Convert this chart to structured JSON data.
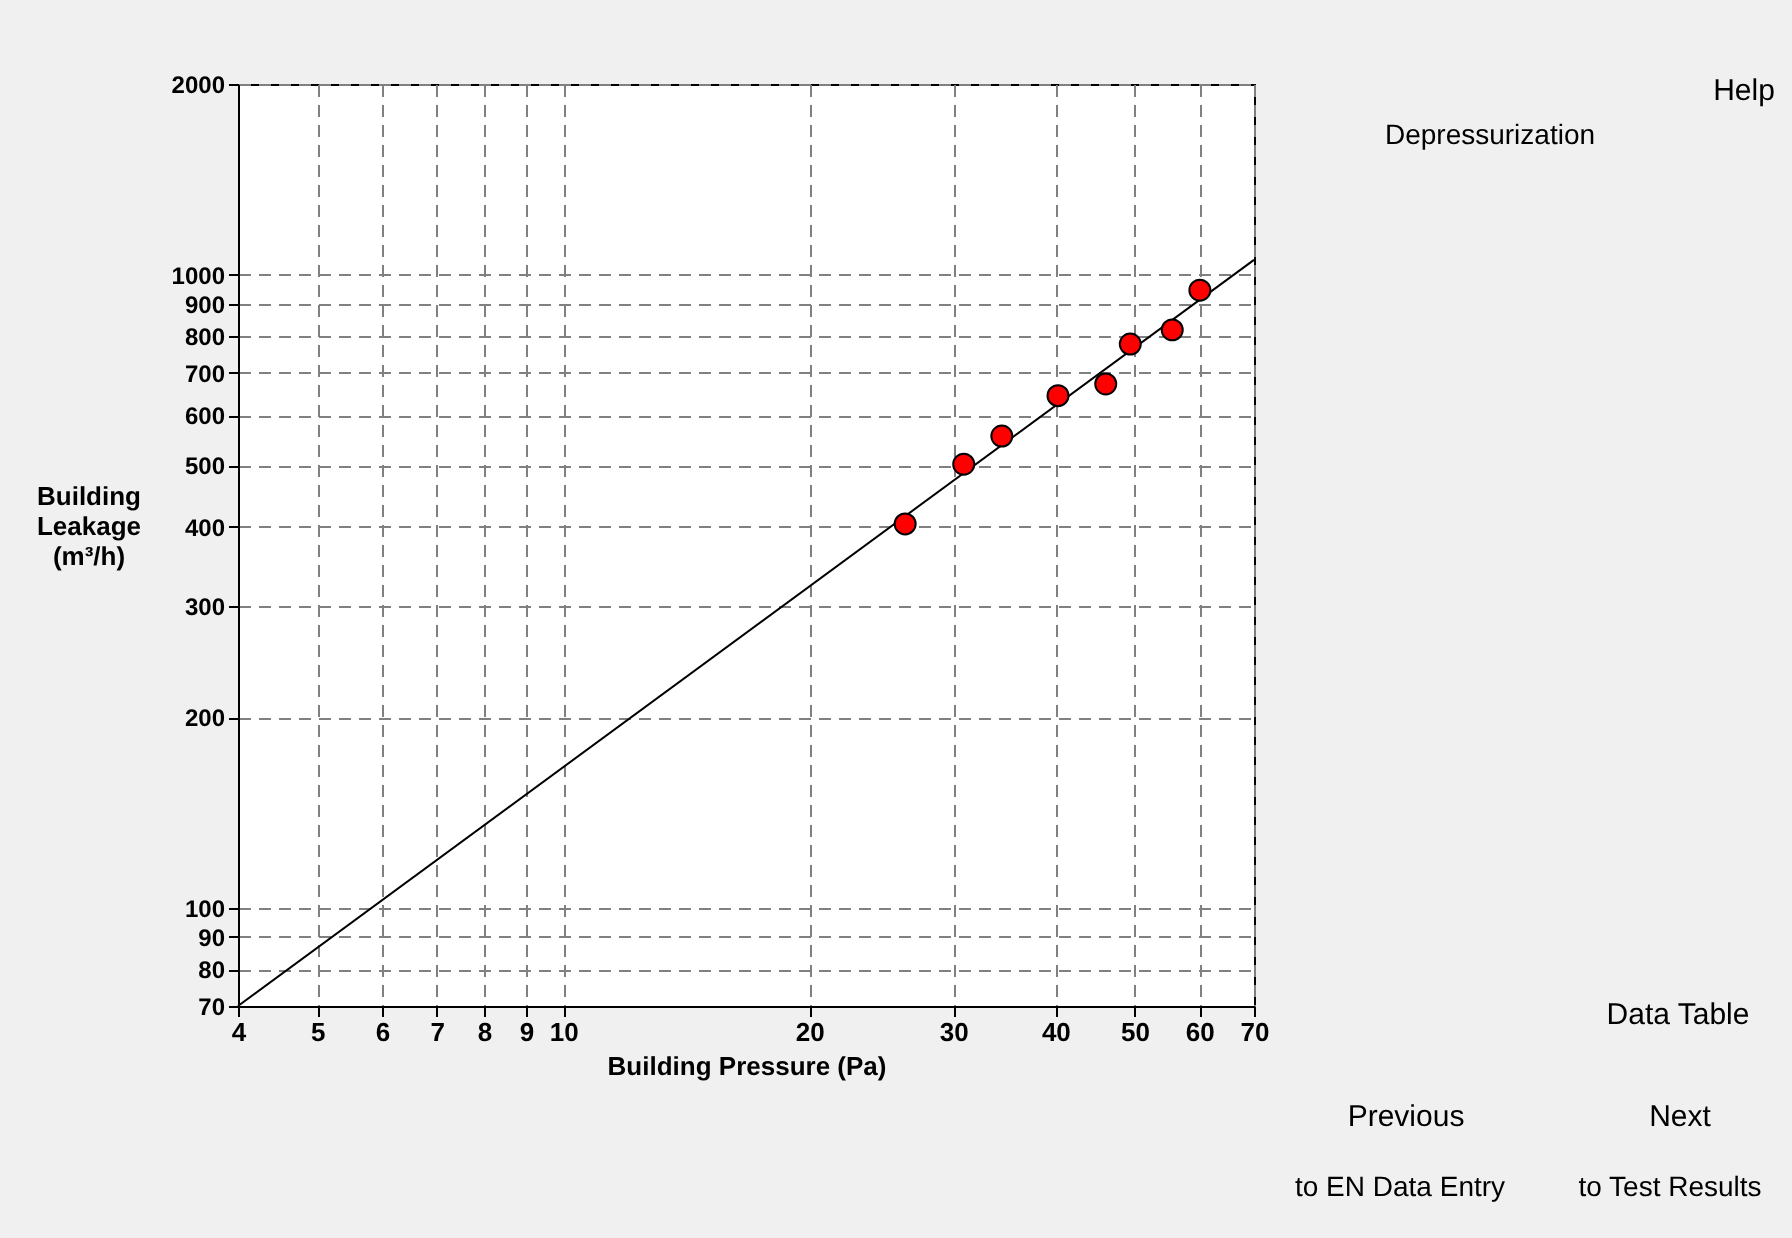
{
  "chart_data": {
    "type": "scatter",
    "xlabel": "Building Pressure (Pa)",
    "ylabel": "Building Leakage (m³/h)",
    "log": "xy",
    "grid": true,
    "xlim": [
      4,
      70
    ],
    "xticks": [
      4,
      5,
      6,
      7,
      8,
      9,
      10,
      20,
      30,
      40,
      50,
      60,
      70
    ],
    "ylim": [
      70,
      2000
    ],
    "yticks": [
      70,
      80,
      90,
      100,
      200,
      300,
      400,
      500,
      600,
      700,
      800,
      900,
      1000,
      2000
    ],
    "series": [
      {
        "type": "line",
        "line_style": "solid",
        "color": "#000000",
        "x": [
          4,
          70
        ],
        "values": [
          70,
          1055
        ]
      },
      {
        "marker": "circle",
        "color": "#ff0000",
        "x": [
          26.2,
          30.9,
          34.4,
          40.3,
          46.1,
          49.4,
          55.6,
          60.1
        ],
        "values": [
          404,
          502,
          556,
          644,
          672,
          777,
          818,
          945
        ]
      }
    ],
    "annotations": [
      "Depressurization",
      "Help",
      "Data Table",
      "Previous",
      "to EN Data Entry",
      "Next",
      "to Test Results"
    ]
  }
}
